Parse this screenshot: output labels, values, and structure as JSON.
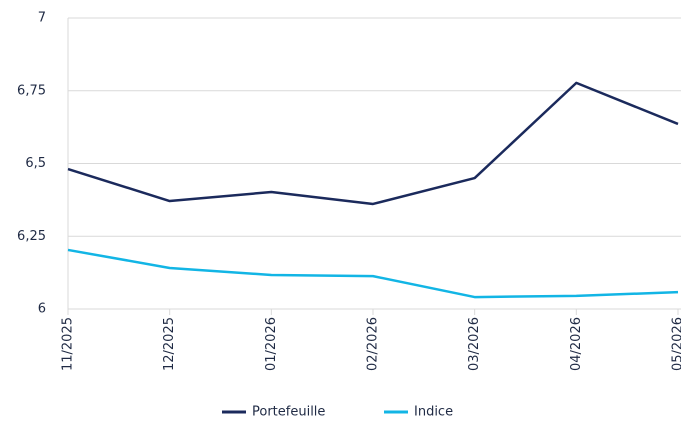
{
  "chart_data": {
    "type": "line",
    "categories": [
      "11/2025",
      "12/2025",
      "01/2026",
      "02/2026",
      "03/2026",
      "04/2026",
      "05/2026"
    ],
    "series": [
      {
        "name": "Portefeuille",
        "color": "#1b2a5c",
        "values": [
          6.481,
          6.371,
          6.402,
          6.361,
          6.45,
          6.777,
          6.636
        ]
      },
      {
        "name": "Indice",
        "color": "#12b5e5",
        "values": [
          6.203,
          6.141,
          6.117,
          6.113,
          6.041,
          6.045,
          6.058
        ]
      }
    ],
    "ylim": [
      6,
      7
    ],
    "yticks": [
      6,
      {
        "value": 6.25,
        "label": "6,25"
      },
      {
        "value": 6.5,
        "label": "6,5"
      },
      {
        "value": 6.75,
        "label": "6,75"
      },
      7
    ],
    "grid": true
  }
}
